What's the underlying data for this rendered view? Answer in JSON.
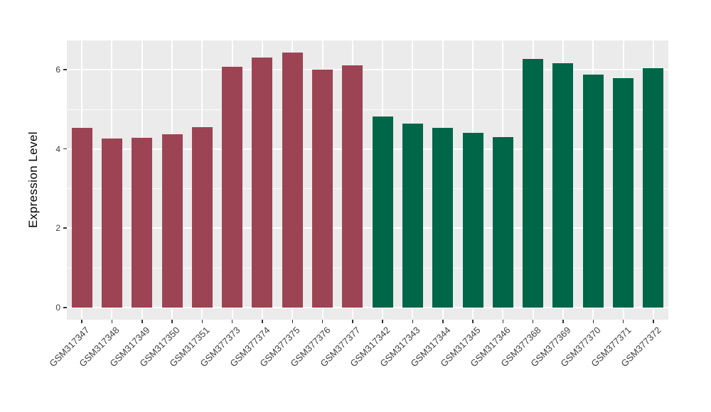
{
  "figure": {
    "background_color": "#FFFFFF",
    "panel_background_color": "#EBEBEB",
    "grid_color": "#FFFFFF",
    "axis_text_color": "#404040",
    "axis_title_color": "#000000",
    "tick_mark_color": "#333333"
  },
  "chart_data": {
    "type": "bar",
    "title": "",
    "xlabel": "",
    "ylabel": "Expression Level",
    "ylim": [
      0,
      6.74
    ],
    "yticks": [
      0,
      2,
      4,
      6
    ],
    "grid": "on",
    "legend": "none",
    "bar_group_colors": {
      "group1": "#9C4453",
      "group2": "#006648"
    },
    "categories": [
      "GSM317347",
      "GSM317348",
      "GSM317349",
      "GSM317350",
      "GSM317351",
      "GSM377373",
      "GSM377374",
      "GSM377375",
      "GSM377376",
      "GSM377377",
      "GSM317342",
      "GSM317343",
      "GSM317344",
      "GSM317345",
      "GSM317346",
      "GSM377368",
      "GSM377369",
      "GSM377370",
      "GSM377371",
      "GSM377372"
    ],
    "values": [
      4.53,
      4.26,
      4.29,
      4.37,
      4.55,
      6.07,
      6.3,
      6.43,
      6.0,
      6.12,
      4.82,
      4.65,
      4.53,
      4.4,
      4.31,
      6.28,
      6.16,
      5.88,
      5.79,
      6.04
    ],
    "groups": [
      "group1",
      "group1",
      "group1",
      "group1",
      "group1",
      "group1",
      "group1",
      "group1",
      "group1",
      "group1",
      "group2",
      "group2",
      "group2",
      "group2",
      "group2",
      "group2",
      "group2",
      "group2",
      "group2",
      "group2"
    ]
  }
}
